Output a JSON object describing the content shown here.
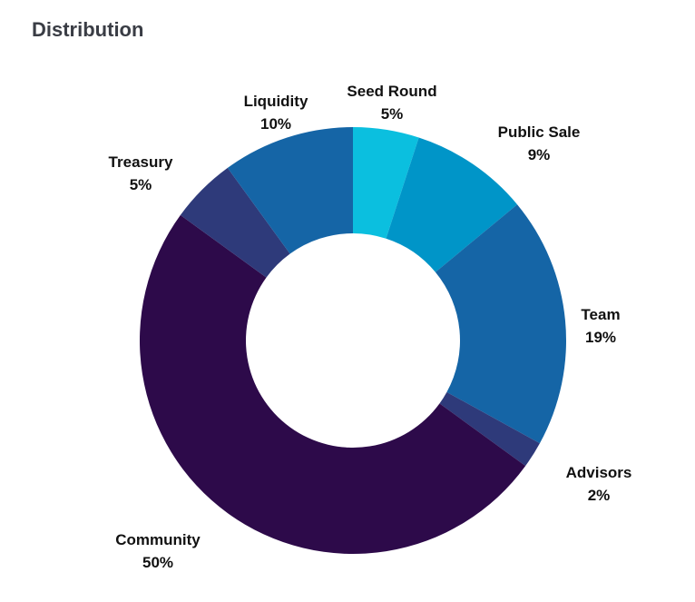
{
  "chart_data": {
    "type": "pie",
    "donut": true,
    "title": "Distribution",
    "start": "top, clockwise",
    "slices": [
      {
        "label": "Seed Round",
        "value": 5,
        "value_label": "5%",
        "color": "#0bbfdf"
      },
      {
        "label": "Public Sale",
        "value": 9,
        "value_label": "9%",
        "color": "#0095c8"
      },
      {
        "label": "Team",
        "value": 19,
        "value_label": "19%",
        "color": "#1565a6"
      },
      {
        "label": "Advisors",
        "value": 2,
        "value_label": "2%",
        "color": "#2e3a7a"
      },
      {
        "label": "Community",
        "value": 50,
        "value_label": "50%",
        "color": "#2d0a4a"
      },
      {
        "label": "Treasury",
        "value": 5,
        "value_label": "5%",
        "color": "#2e3a7a"
      },
      {
        "label": "Liquidity",
        "value": 10,
        "value_label": "10%",
        "color": "#1565a6"
      }
    ]
  }
}
